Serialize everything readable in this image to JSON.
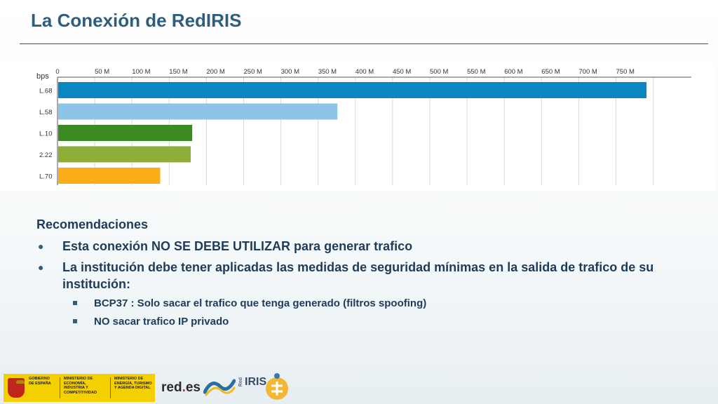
{
  "title": "La Conexión de RedIRIS",
  "chart_data": {
    "type": "bar",
    "orientation": "horizontal",
    "unit_label": "bps",
    "x_ticks": [
      "0",
      "50 M",
      "100 M",
      "150 M",
      "200 M",
      "250 M",
      "300 M",
      "350 M",
      "400 M",
      "450 M",
      "500 M",
      "550 M",
      "600 M",
      "650 M",
      "700 M",
      "750 M"
    ],
    "xlim": [
      0,
      850
    ],
    "categories": [
      "L.68",
      "L.58",
      "L.10",
      "2.22",
      "L.70"
    ],
    "values": [
      790,
      375,
      180,
      178,
      137
    ],
    "colors": [
      "#0a86c0",
      "#8ec4e6",
      "#3b8a24",
      "#8fae38",
      "#fbae17"
    ],
    "grid": true
  },
  "recommendations": {
    "heading": "Recomendaciones",
    "bullet_glyph": "●",
    "items": [
      {
        "text": "Esta conexión NO SE DEBE UTILIZAR para generar trafico"
      },
      {
        "text": "La institución debe tener aplicadas las medidas de seguridad mínimas en la salida de trafico de su institución:"
      }
    ],
    "subitems": [
      {
        "text": "BCP37 : Solo sacar el trafico que tenga generado (filtros spoofing)"
      },
      {
        "text": "NO sacar trafico IP privado"
      }
    ]
  },
  "footer": {
    "gov_label": "GOBIERNO DE ESPAÑA",
    "ministry1": "MINISTERIO DE ECONOMÍA, INDUSTRIA Y COMPETITIVIDAD",
    "ministry2": "MINISTERIO DE ENERGÍA, TURISMO Y AGENDA DIGITAL",
    "rede_text": "red",
    "rede_dot": ".",
    "rede_es": "es",
    "rediris_small": "Red",
    "rediris": "IRIS"
  }
}
